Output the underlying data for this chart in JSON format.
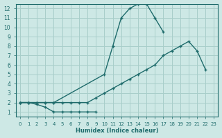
{
  "xlabel": "Humidex (Indice chaleur)",
  "bg_color": "#cde8e5",
  "grid_color": "#a8ceca",
  "line_color": "#1e6b6b",
  "xlim": [
    -0.5,
    23.5
  ],
  "ylim": [
    0.5,
    12.5
  ],
  "xticks": [
    0,
    1,
    2,
    3,
    4,
    5,
    6,
    7,
    8,
    9,
    10,
    11,
    12,
    13,
    14,
    15,
    16,
    17,
    18,
    19,
    20,
    21,
    22,
    23
  ],
  "yticks": [
    1,
    2,
    3,
    4,
    5,
    6,
    7,
    8,
    9,
    10,
    11,
    12
  ],
  "line1_x": [
    0,
    1,
    2,
    3,
    4,
    5,
    6,
    7,
    8,
    9
  ],
  "line1_y": [
    2,
    2,
    1.8,
    1.5,
    1,
    1,
    1,
    1,
    1,
    1
  ],
  "line2_x": [
    0,
    1,
    2,
    3,
    4,
    10,
    11,
    12,
    13,
    14,
    15,
    16,
    17
  ],
  "line2_y": [
    2,
    2,
    2,
    2,
    2,
    5,
    8,
    11,
    12,
    12.5,
    12.5,
    11,
    9.5
  ],
  "line3_x": [
    0,
    1,
    2,
    3,
    4,
    5,
    6,
    7,
    8,
    9,
    10,
    11,
    12,
    13,
    14,
    15,
    16,
    17,
    18,
    19,
    20,
    21,
    22
  ],
  "line3_y": [
    2,
    2,
    2,
    2,
    2,
    2,
    2,
    2,
    2,
    2.5,
    3,
    3.5,
    4,
    4.5,
    5,
    5.5,
    6,
    7,
    7.5,
    8,
    8.5,
    7.5,
    5.5
  ]
}
